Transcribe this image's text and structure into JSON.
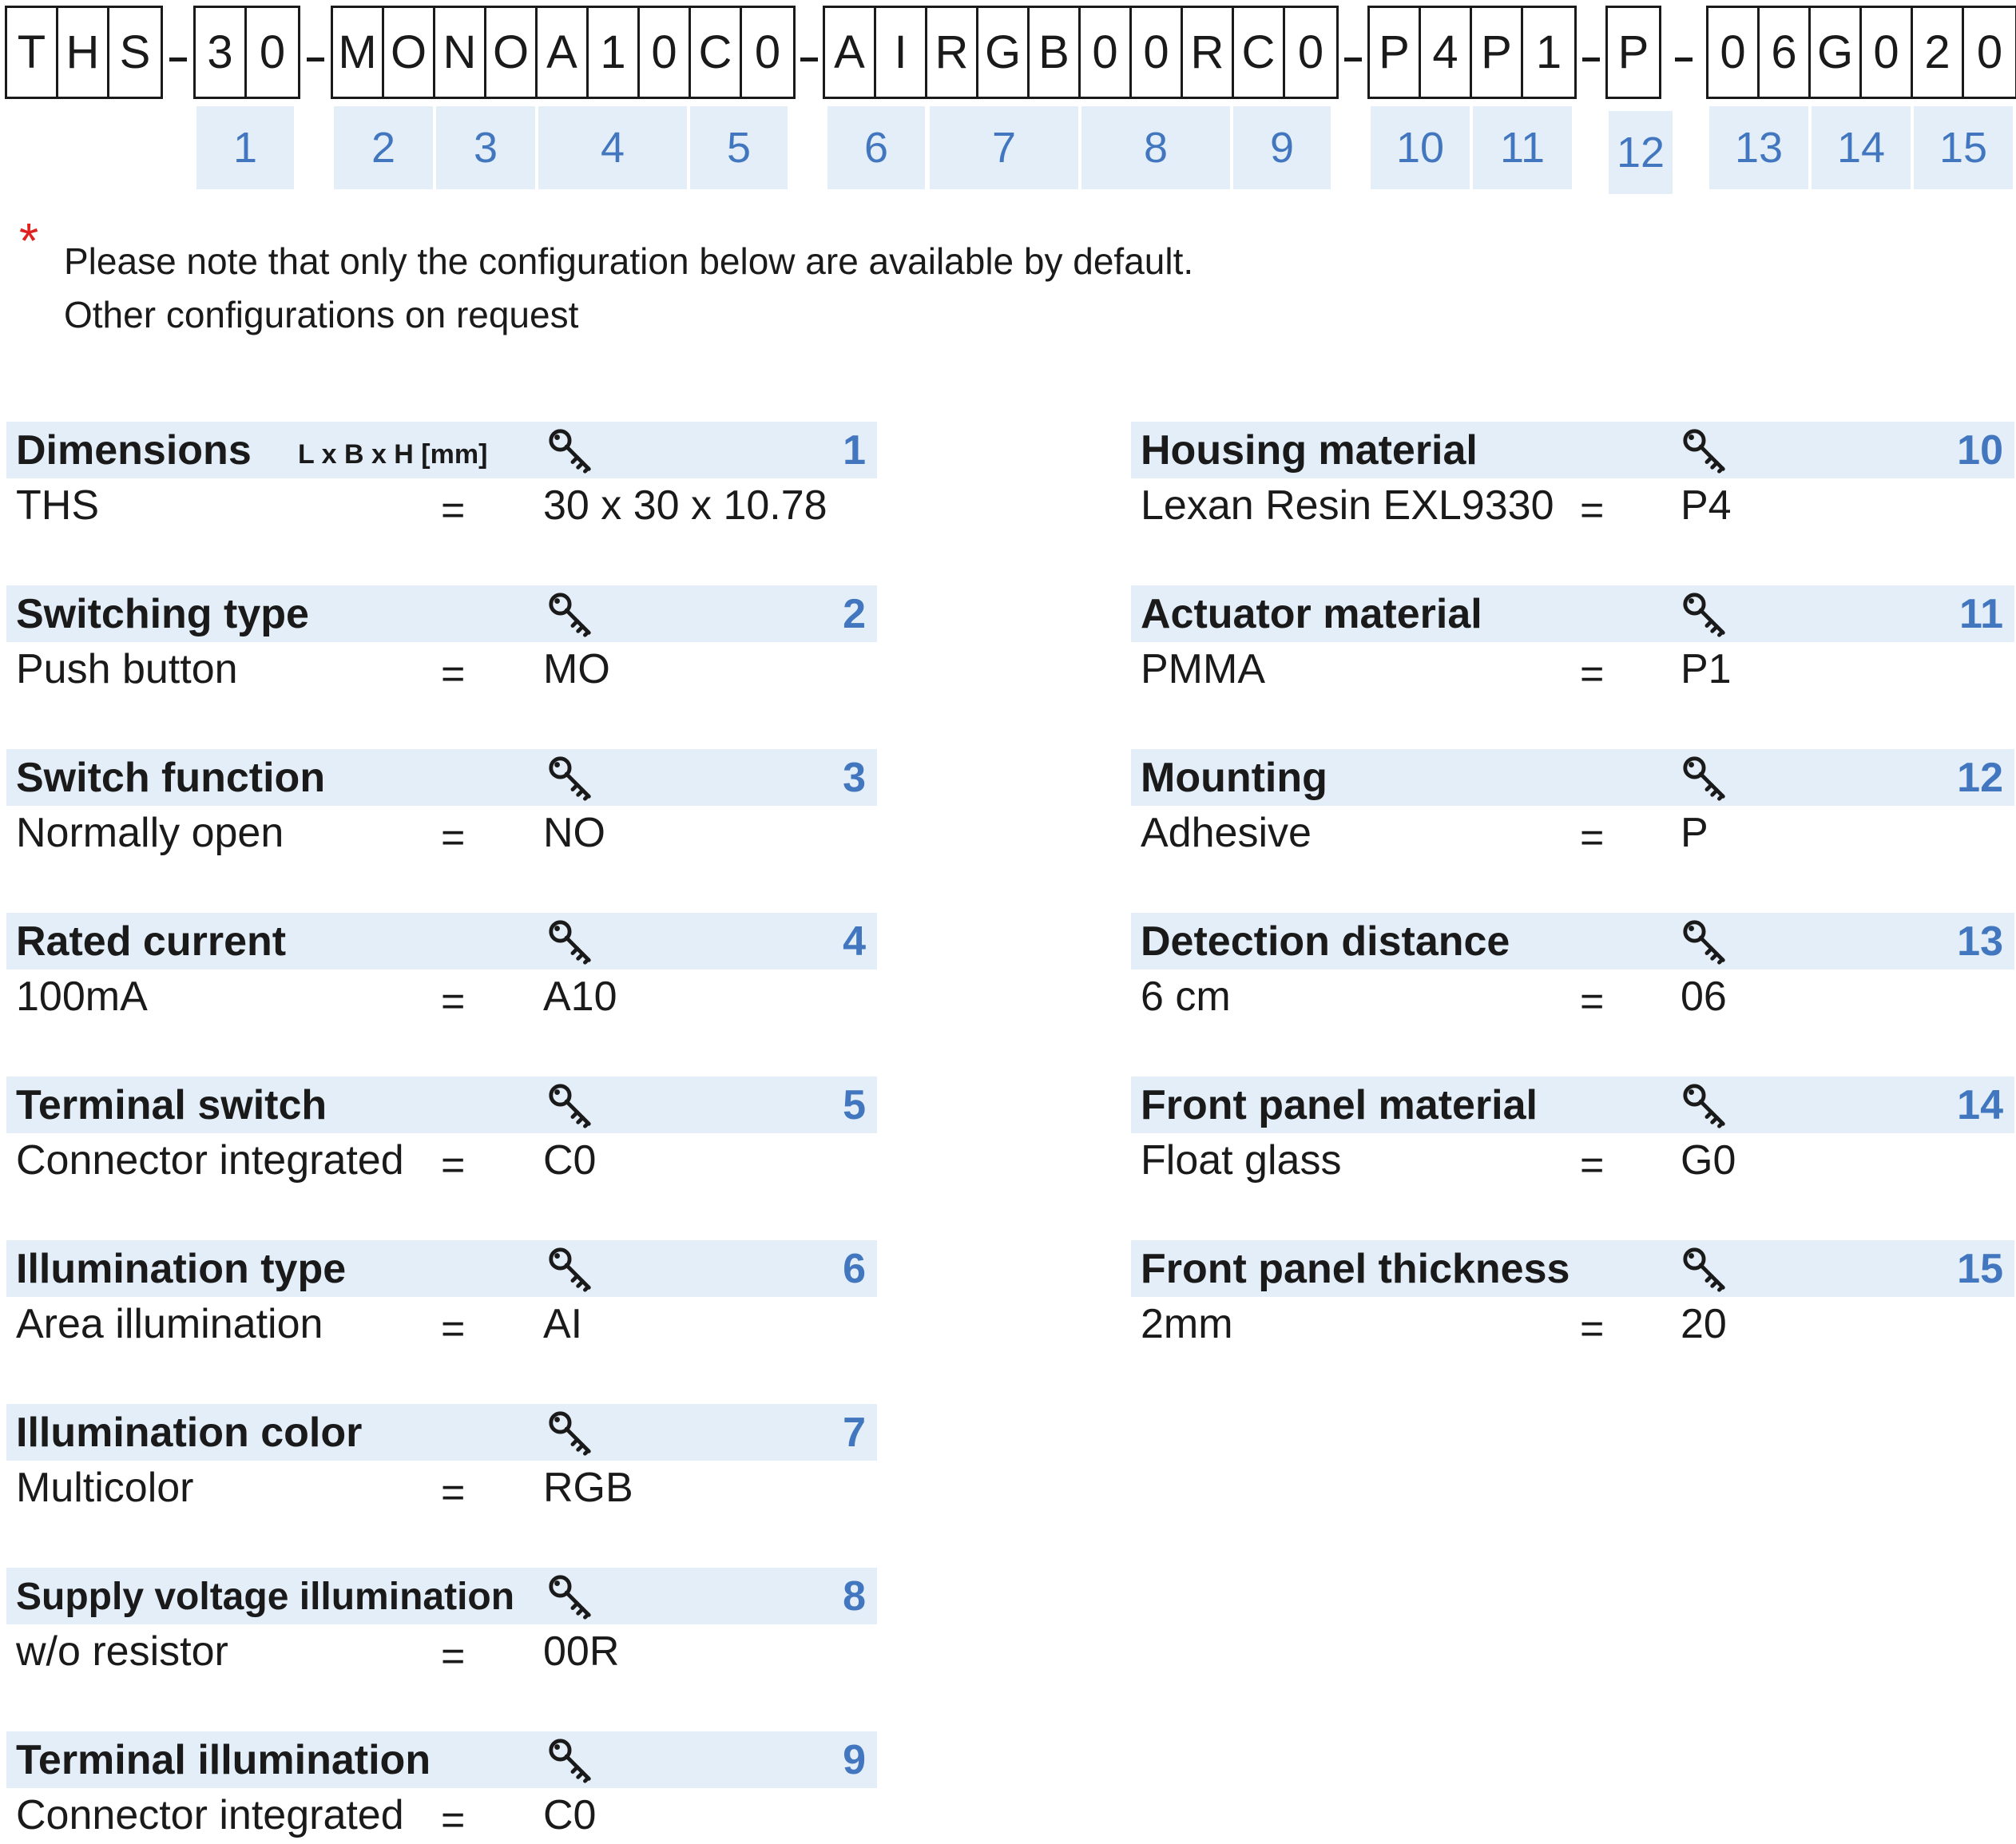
{
  "code_groups": [
    [
      "T",
      "H",
      "S"
    ],
    [
      "3",
      "0"
    ],
    [
      "M",
      "O",
      "N",
      "O",
      "A",
      "1",
      "0",
      "C",
      "0"
    ],
    [
      "A",
      "I",
      "R",
      "G",
      "B",
      "0",
      "0",
      "R",
      "C",
      "0"
    ],
    [
      "P",
      "4",
      "P",
      "1"
    ],
    [
      "P"
    ],
    [
      "0",
      "6",
      "G",
      "0",
      "2",
      "0"
    ]
  ],
  "dash": "-",
  "positions": [
    "1",
    "2",
    "3",
    "4",
    "5",
    "6",
    "7",
    "8",
    "9",
    "10",
    "11",
    "12",
    "13",
    "14",
    "15"
  ],
  "note": {
    "star": "*",
    "line1": "Please note that only the configuration below are available by default.",
    "line2": "Other configurations on request"
  },
  "sections": [
    {
      "title": "Dimensions",
      "subtitle": "L x B x H [mm]",
      "num": "1",
      "label": "THS",
      "eq": "=",
      "code": "30 x 30 x 10.78"
    },
    {
      "title": "Switching type",
      "num": "2",
      "label": "Push button",
      "eq": "=",
      "code": "MO"
    },
    {
      "title": "Switch function",
      "num": "3",
      "label": "Normally open",
      "eq": "=",
      "code": "NO"
    },
    {
      "title": "Rated current",
      "num": "4",
      "label": "100mA",
      "eq": "=",
      "code": "A10"
    },
    {
      "title": "Terminal switch",
      "num": "5",
      "label": "Connector integrated",
      "eq": "=",
      "code": "C0"
    },
    {
      "title": "Illumination type",
      "num": "6",
      "label": "Area illumination",
      "eq": "=",
      "code": "AI"
    },
    {
      "title": "Illumination color",
      "num": "7",
      "label": "Multicolor",
      "eq": "=",
      "code": "RGB"
    },
    {
      "title": "Supply voltage illumination",
      "num": "8",
      "label": "w/o resistor",
      "eq": "=",
      "code": "00R"
    },
    {
      "title": "Terminal illumination",
      "num": "9",
      "label": "Connector integrated",
      "eq": "=",
      "code": "C0"
    },
    {
      "title": "Housing material",
      "num": "10",
      "label": "Lexan Resin EXL9330",
      "eq": "=",
      "code": "P4"
    },
    {
      "title": "Actuator material",
      "num": "11",
      "label": "PMMA",
      "eq": "=",
      "code": "P1"
    },
    {
      "title": "Mounting",
      "num": "12",
      "label": "Adhesive",
      "eq": "=",
      "code": "P"
    },
    {
      "title": "Detection distance",
      "num": "13",
      "label": "6 cm",
      "eq": "=",
      "code": "06"
    },
    {
      "title": "Front panel material",
      "num": "14",
      "label": "Float glass",
      "eq": "=",
      "code": "G0"
    },
    {
      "title": "Front panel thickness",
      "num": "15",
      "label": "2mm",
      "eq": "=",
      "code": "20"
    }
  ],
  "icon": "key-icon",
  "colors": {
    "accent": "#4277bf",
    "band": "#e3eef8",
    "star": "#e0201f"
  }
}
